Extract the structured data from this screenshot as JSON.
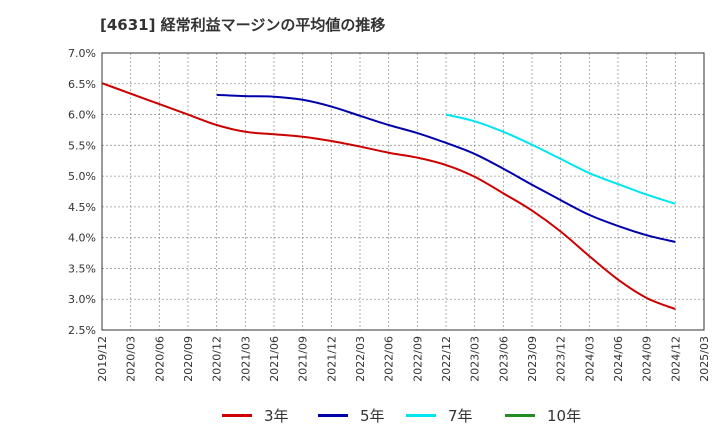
{
  "title": "[4631]  経常利益マージンの平均値の推移",
  "chart_data": {
    "type": "line",
    "title": "[4631]  経常利益マージンの平均値の推移",
    "xlabel": "",
    "ylabel": "",
    "ylim": [
      2.5,
      7.0
    ],
    "y_ticks": [
      "7.0%",
      "6.5%",
      "6.0%",
      "5.5%",
      "5.0%",
      "4.5%",
      "4.0%",
      "3.5%",
      "3.0%",
      "2.5%"
    ],
    "x_ticks": [
      "2019/12",
      "2020/03",
      "2020/06",
      "2020/09",
      "2020/12",
      "2021/03",
      "2021/06",
      "2021/09",
      "2021/12",
      "2022/03",
      "2022/06",
      "2022/09",
      "2022/12",
      "2023/03",
      "2023/06",
      "2023/09",
      "2023/12",
      "2024/03",
      "2024/06",
      "2024/09",
      "2024/12",
      "2025/03"
    ],
    "grid": true,
    "legend_position": "bottom",
    "series": [
      {
        "name": "3年",
        "color": "#cc0000",
        "x": [
          "2019/12",
          "2020/03",
          "2020/06",
          "2020/09",
          "2020/12",
          "2021/03",
          "2021/06",
          "2021/09",
          "2021/12",
          "2022/03",
          "2022/06",
          "2022/09",
          "2022/12",
          "2023/03",
          "2023/06",
          "2023/09",
          "2023/12",
          "2024/03",
          "2024/06",
          "2024/09",
          "2024/12"
        ],
        "values": [
          6.51,
          6.34,
          6.17,
          6.0,
          5.83,
          5.72,
          5.68,
          5.64,
          5.57,
          5.48,
          5.38,
          5.3,
          5.18,
          4.99,
          4.72,
          4.44,
          4.1,
          3.7,
          3.32,
          3.02,
          2.84
        ]
      },
      {
        "name": "5年",
        "color": "#0000aa",
        "x": [
          "2020/12",
          "2021/03",
          "2021/06",
          "2021/09",
          "2021/12",
          "2022/03",
          "2022/06",
          "2022/09",
          "2022/12",
          "2023/03",
          "2023/06",
          "2023/09",
          "2023/12",
          "2024/03",
          "2024/06",
          "2024/09",
          "2024/12"
        ],
        "values": [
          6.32,
          6.3,
          6.29,
          6.24,
          6.13,
          5.98,
          5.83,
          5.7,
          5.54,
          5.36,
          5.12,
          4.86,
          4.61,
          4.37,
          4.19,
          4.04,
          3.93
        ]
      },
      {
        "name": "7年",
        "color": "#00e5ee",
        "x": [
          "2022/12",
          "2023/03",
          "2023/06",
          "2023/09",
          "2023/12",
          "2024/03",
          "2024/06",
          "2024/09",
          "2024/12"
        ],
        "values": [
          6.0,
          5.89,
          5.72,
          5.51,
          5.28,
          5.05,
          4.87,
          4.7,
          4.55
        ]
      },
      {
        "name": "10年",
        "color": "#228b22",
        "x": [],
        "values": []
      }
    ]
  }
}
